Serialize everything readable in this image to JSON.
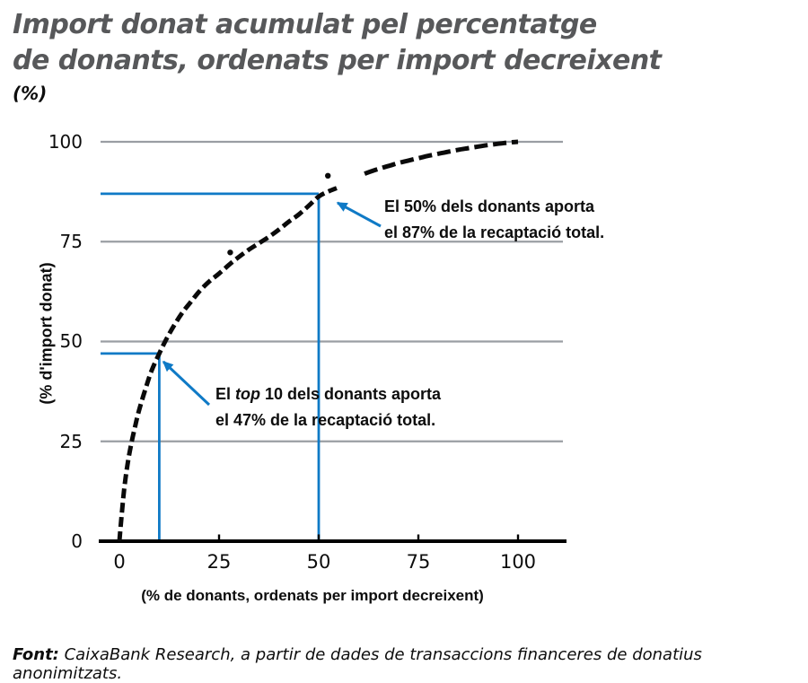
{
  "title": {
    "line1": "Import donat acumulat pel percentatge",
    "line2": "de donants, ordenats per import decreixent",
    "unit": "(%)"
  },
  "axes": {
    "x_label": "(% de donants, ordenats per import decreixent)",
    "y_label": "(% d'import donat)",
    "x_ticks": [
      "0",
      "25",
      "50",
      "75",
      "100"
    ],
    "y_ticks": [
      "100",
      "75",
      "50",
      "25",
      "0"
    ]
  },
  "annotations": {
    "a1": {
      "line1": "El 50% dels donants aporta",
      "line2": "el 87% de la recaptació total."
    },
    "a2": {
      "line1_pre": "El ",
      "line1_italic": "top",
      "line1_post": " 10 dels donants aporta",
      "line2": "el 47% de la recaptació total."
    }
  },
  "footer": {
    "label": "Font:",
    "text": " CaixaBank Research, a partir de dades de transaccions financeres de donatius anonimitzats."
  },
  "chart_data": {
    "type": "scatter",
    "title": "Import donat acumulat pel percentatge de donants, ordenats per import decreixent (%)",
    "xlabel": "(% de donants, ordenats per import decreixent)",
    "ylabel": "(% d'import donat)",
    "xlim": [
      0,
      100
    ],
    "ylim": [
      0,
      100
    ],
    "xticks": [
      0,
      25,
      50,
      75,
      100
    ],
    "yticks": [
      0,
      25,
      50,
      75,
      100
    ],
    "grid": "horizontal",
    "legend": "none",
    "series": [
      {
        "name": "corba-acumulada-segment-1",
        "points": [
          [
            0,
            0
          ],
          [
            0.6,
            7
          ],
          [
            1.2,
            13
          ],
          [
            2,
            19
          ],
          [
            3,
            24.5
          ],
          [
            4,
            29
          ],
          [
            5,
            33
          ],
          [
            6.5,
            38
          ],
          [
            8,
            42.5
          ],
          [
            10,
            47
          ],
          [
            12,
            51
          ],
          [
            14,
            54.5
          ],
          [
            16,
            57.5
          ],
          [
            18,
            60
          ],
          [
            20,
            62.5
          ],
          [
            22.5,
            65
          ],
          [
            25,
            67
          ],
          [
            27.5,
            69.2
          ],
          [
            30,
            71.2
          ],
          [
            32.5,
            73
          ],
          [
            35,
            74.6
          ],
          [
            37.5,
            76.2
          ],
          [
            40,
            78
          ],
          [
            42.5,
            80
          ],
          [
            45,
            81.8
          ],
          [
            47.5,
            84
          ],
          [
            50,
            86.3
          ],
          [
            52.5,
            87.6
          ],
          [
            54.5,
            88.4
          ]
        ]
      },
      {
        "name": "corba-acumulada-segment-2",
        "points": [
          [
            61.5,
            92
          ],
          [
            64,
            92.9
          ],
          [
            66,
            93.5
          ],
          [
            68,
            94.1
          ],
          [
            70,
            94.7
          ],
          [
            72.5,
            95.3
          ],
          [
            75,
            95.9
          ],
          [
            77.5,
            96.5
          ],
          [
            80,
            97
          ],
          [
            82.5,
            97.5
          ],
          [
            85,
            98
          ],
          [
            87.5,
            98.4
          ],
          [
            90,
            98.8
          ],
          [
            92.5,
            99.2
          ],
          [
            95,
            99.5
          ],
          [
            97.5,
            99.8
          ],
          [
            100,
            100
          ]
        ]
      },
      {
        "name": "punts-aillats",
        "points": [
          [
            27.8,
            72.3
          ],
          [
            52.3,
            91.5
          ]
        ]
      }
    ],
    "reference_lines": [
      {
        "x": 10,
        "y": 47,
        "color": "#0f7ac6"
      },
      {
        "x": 50,
        "y": 87,
        "color": "#0f7ac6"
      }
    ],
    "annotations": [
      {
        "text": "El 50% dels donants aporta el 87% de la recaptació total.",
        "target_x": 50,
        "target_y": 87
      },
      {
        "text": "El top 10 dels donants aporta el 47% de la recaptació total.",
        "target_x": 10,
        "target_y": 47
      }
    ],
    "colors": {
      "curve": "#0a0a0a",
      "reference": "#0f7ac6",
      "grid": "#9a9ea3",
      "axis": "#000000",
      "title": "#57585a"
    },
    "source": "Font: CaixaBank Research, a partir de dades de transaccions financeres de donatius anonimitzats."
  }
}
